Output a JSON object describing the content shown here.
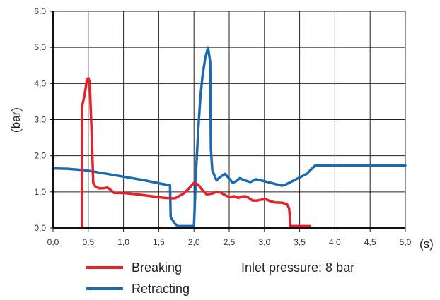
{
  "chart_data": {
    "type": "line",
    "xlabel": "(s)",
    "ylabel": "(bar)",
    "xlim": [
      0,
      5
    ],
    "ylim": [
      0,
      6
    ],
    "x_ticks": [
      "0,0",
      "0,5",
      "1,0",
      "1,5",
      "2,0",
      "2,5",
      "3,0",
      "3,5",
      "4,0",
      "4,5",
      "5,0"
    ],
    "y_ticks": [
      "0,0",
      "1,0",
      "2,0",
      "3,0",
      "4,0",
      "5,0",
      "6,0"
    ],
    "grid": true,
    "annotation": "Inlet pressure: 8 bar",
    "series": [
      {
        "name": "Breaking",
        "color": "#e8202a",
        "points": [
          [
            0.41,
            0.0
          ],
          [
            0.41,
            3.35
          ],
          [
            0.45,
            3.7
          ],
          [
            0.48,
            4.1
          ],
          [
            0.5,
            4.15
          ],
          [
            0.52,
            4.05
          ],
          [
            0.55,
            2.5
          ],
          [
            0.57,
            1.25
          ],
          [
            0.6,
            1.15
          ],
          [
            0.65,
            1.1
          ],
          [
            0.72,
            1.1
          ],
          [
            0.77,
            1.12
          ],
          [
            0.82,
            1.05
          ],
          [
            0.87,
            0.97
          ],
          [
            1.0,
            0.97
          ],
          [
            1.2,
            0.93
          ],
          [
            1.4,
            0.88
          ],
          [
            1.6,
            0.83
          ],
          [
            1.73,
            0.82
          ],
          [
            1.85,
            0.95
          ],
          [
            1.93,
            1.1
          ],
          [
            2.0,
            1.25
          ],
          [
            2.06,
            1.2
          ],
          [
            2.12,
            1.05
          ],
          [
            2.18,
            0.93
          ],
          [
            2.25,
            0.95
          ],
          [
            2.32,
            1.0
          ],
          [
            2.38,
            0.98
          ],
          [
            2.45,
            0.9
          ],
          [
            2.5,
            0.86
          ],
          [
            2.57,
            0.88
          ],
          [
            2.63,
            0.83
          ],
          [
            2.68,
            0.87
          ],
          [
            2.73,
            0.88
          ],
          [
            2.78,
            0.83
          ],
          [
            2.83,
            0.76
          ],
          [
            2.9,
            0.76
          ],
          [
            2.97,
            0.79
          ],
          [
            3.03,
            0.79
          ],
          [
            3.08,
            0.74
          ],
          [
            3.15,
            0.71
          ],
          [
            3.25,
            0.7
          ],
          [
            3.32,
            0.66
          ],
          [
            3.35,
            0.55
          ],
          [
            3.37,
            0.05
          ],
          [
            3.65,
            0.05
          ]
        ]
      },
      {
        "name": "Retracting",
        "color": "#1a6bb0",
        "points": [
          [
            0.0,
            1.65
          ],
          [
            0.2,
            1.64
          ],
          [
            0.45,
            1.6
          ],
          [
            0.7,
            1.52
          ],
          [
            1.0,
            1.42
          ],
          [
            1.3,
            1.32
          ],
          [
            1.55,
            1.22
          ],
          [
            1.66,
            1.18
          ],
          [
            1.67,
            0.3
          ],
          [
            1.73,
            0.12
          ],
          [
            1.77,
            0.05
          ],
          [
            1.98,
            0.05
          ],
          [
            2.0,
            0.05
          ],
          [
            2.03,
            1.6
          ],
          [
            2.06,
            2.7
          ],
          [
            2.09,
            3.6
          ],
          [
            2.12,
            4.2
          ],
          [
            2.16,
            4.7
          ],
          [
            2.2,
            5.0
          ],
          [
            2.23,
            4.6
          ],
          [
            2.24,
            2.2
          ],
          [
            2.26,
            1.6
          ],
          [
            2.32,
            1.32
          ],
          [
            2.38,
            1.42
          ],
          [
            2.44,
            1.5
          ],
          [
            2.5,
            1.37
          ],
          [
            2.55,
            1.25
          ],
          [
            2.6,
            1.3
          ],
          [
            2.65,
            1.38
          ],
          [
            2.72,
            1.32
          ],
          [
            2.8,
            1.27
          ],
          [
            2.88,
            1.35
          ],
          [
            2.95,
            1.32
          ],
          [
            3.05,
            1.27
          ],
          [
            3.15,
            1.22
          ],
          [
            3.25,
            1.17
          ],
          [
            3.3,
            1.2
          ],
          [
            3.45,
            1.35
          ],
          [
            3.6,
            1.5
          ],
          [
            3.72,
            1.73
          ],
          [
            4.0,
            1.73
          ],
          [
            4.5,
            1.73
          ],
          [
            5.0,
            1.73
          ]
        ]
      }
    ]
  }
}
